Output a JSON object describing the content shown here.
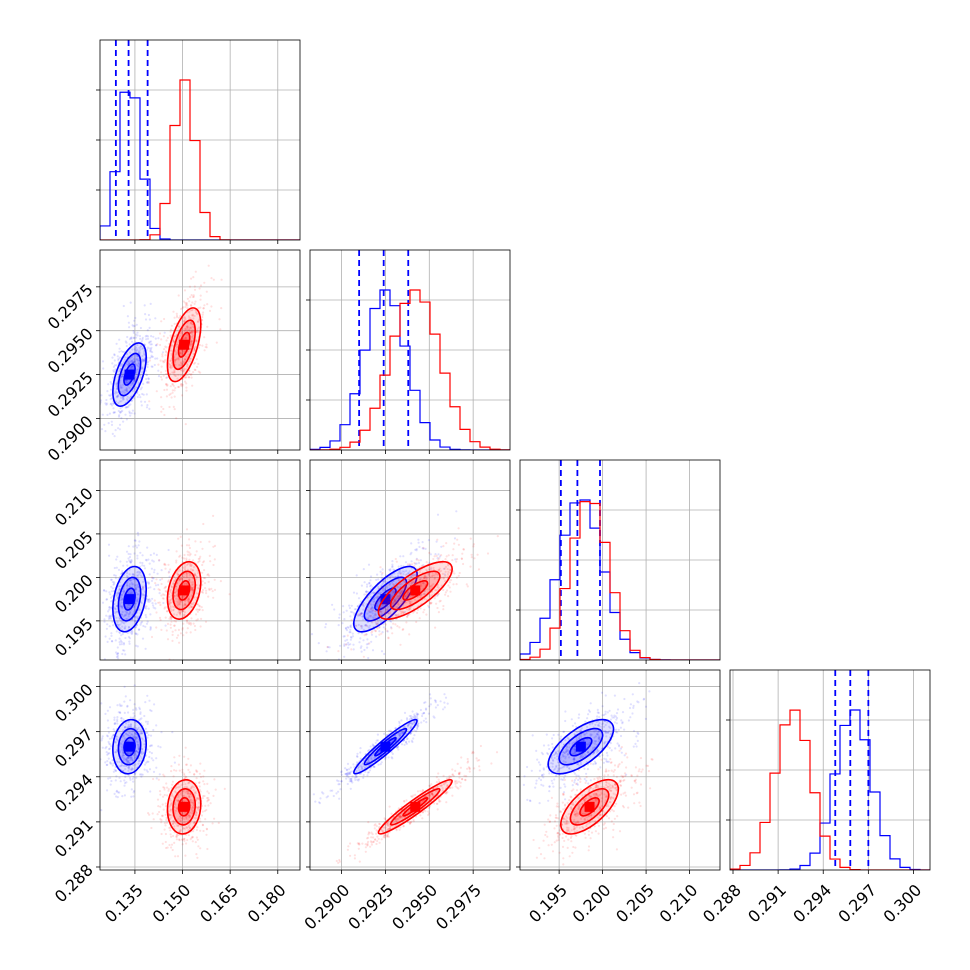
{
  "chart_data": {
    "type": "corner",
    "title": "",
    "parameters": [
      {
        "range": [
          0.124,
          0.187
        ],
        "ticks": [
          "0.135",
          "0.150",
          "0.165",
          "0.180"
        ]
      },
      {
        "range": [
          0.2882,
          0.2996
        ],
        "ticks": [
          "0.2900",
          "0.2925",
          "0.2950",
          "0.2975"
        ]
      },
      {
        "range": [
          0.1905,
          0.2135
        ],
        "ticks": [
          "0.195",
          "0.200",
          "0.205",
          "0.210"
        ]
      },
      {
        "range": [
          0.2878,
          0.3011
        ],
        "ticks": [
          "0.288",
          "0.291",
          "0.294",
          "0.297",
          "0.300"
        ]
      }
    ],
    "series": [
      {
        "color": "#0000ff",
        "means": [
          0.1333,
          0.2925,
          0.1975,
          0.296
        ],
        "sds": [
          0.0035,
          0.0012,
          0.0025,
          0.0012
        ],
        "quantile_lines": [
          [
            0.129,
            0.133,
            0.139
          ],
          [
            0.291,
            0.2924,
            0.2938
          ],
          [
            0.1952,
            0.1971,
            0.1997
          ],
          [
            0.2948,
            0.2958,
            0.297
          ]
        ]
      },
      {
        "color": "#ff0000",
        "means": [
          0.1505,
          0.2942,
          0.1985,
          0.292
        ],
        "sds": [
          0.0035,
          0.0014,
          0.0022,
          0.0012
        ]
      }
    ],
    "correlations": {
      "0-1": [
        0.55,
        0.55
      ],
      "0-2": [
        0.3,
        0.3
      ],
      "0-3": [
        0.1,
        0.1
      ],
      "1-2": [
        0.75,
        0.75
      ],
      "1-3": [
        0.95,
        0.95
      ],
      "2-3": [
        0.65,
        0.65
      ]
    },
    "contour_levels": [
      0.5,
      1.0,
      1.5
    ],
    "grid": true,
    "legend": "none"
  }
}
